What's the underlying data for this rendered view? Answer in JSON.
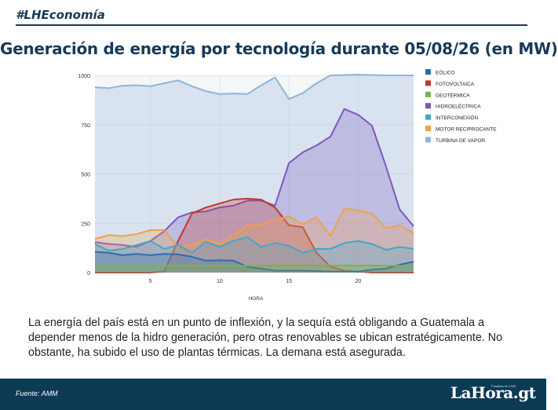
{
  "header": {
    "hashtag": "#LHEconomía"
  },
  "chart_data": {
    "type": "area",
    "title": "Generación de energía por tecnología durante 05/08/26 (en MW)",
    "xlabel": "HORA",
    "ylabel": "",
    "xlim": [
      1,
      24
    ],
    "ylim": [
      0,
      1000
    ],
    "xticks": [
      5,
      10,
      15,
      20
    ],
    "yticks": [
      0,
      250,
      500,
      750,
      1000
    ],
    "legend_position": "right",
    "x": [
      1,
      2,
      3,
      4,
      5,
      6,
      7,
      8,
      9,
      10,
      11,
      12,
      13,
      14,
      15,
      16,
      17,
      18,
      19,
      20,
      21,
      22,
      23,
      24
    ],
    "series": [
      {
        "name": "EÓLICO",
        "color": "#2b6cb0",
        "values": [
          105,
          100,
          88,
          95,
          88,
          95,
          92,
          80,
          60,
          62,
          60,
          30,
          20,
          10,
          10,
          10,
          8,
          5,
          5,
          5,
          15,
          20,
          40,
          55
        ]
      },
      {
        "name": "FOTOVOLTAICA",
        "color": "#c0392b",
        "values": [
          0,
          0,
          0,
          0,
          0,
          5,
          160,
          300,
          330,
          350,
          370,
          375,
          370,
          330,
          240,
          230,
          100,
          30,
          10,
          5,
          0,
          0,
          0,
          0
        ]
      },
      {
        "name": "GEOTÉRMICA",
        "color": "#7cb342",
        "values": [
          35,
          35,
          35,
          35,
          35,
          35,
          35,
          35,
          35,
          35,
          35,
          35,
          35,
          35,
          35,
          35,
          35,
          35,
          35,
          35,
          35,
          35,
          35,
          35
        ]
      },
      {
        "name": "HIDROELÉCTRICA",
        "color": "#7e57c2",
        "values": [
          155,
          145,
          140,
          130,
          160,
          210,
          280,
          305,
          310,
          330,
          340,
          365,
          365,
          340,
          555,
          610,
          645,
          690,
          830,
          800,
          745,
          540,
          320,
          235
        ]
      },
      {
        "name": "INTERCONEXIÓN",
        "color": "#3fa7c9",
        "values": [
          145,
          110,
          120,
          140,
          160,
          120,
          140,
          100,
          155,
          130,
          160,
          180,
          130,
          150,
          135,
          100,
          120,
          120,
          150,
          160,
          145,
          115,
          130,
          120
        ]
      },
      {
        "name": "MOTOR RECIPROCANTE",
        "color": "#f0a04b",
        "values": [
          170,
          190,
          185,
          195,
          215,
          215,
          130,
          140,
          170,
          145,
          190,
          240,
          245,
          265,
          285,
          245,
          280,
          185,
          325,
          315,
          300,
          225,
          240,
          200
        ]
      },
      {
        "name": "TURBINA DE VAPOR",
        "color": "#90b4d8",
        "values": [
          940,
          935,
          948,
          950,
          945,
          960,
          975,
          945,
          920,
          905,
          908,
          905,
          950,
          990,
          880,
          910,
          960,
          1000,
          1002,
          1004,
          1002,
          1000,
          1000,
          1000
        ]
      }
    ]
  },
  "caption": "La energía del país está en un punto de inflexión, y la sequía está obligando a Guatemala a depender menos de la hidro generación, pero otras renovables se ubican estratégicamente.  No obstante, ha subido el uso de plantas térmicas.  La demana está asegurada.",
  "footer": {
    "source": "Fuente: AMM",
    "logo": "LaHora.gt",
    "logo_tagline": "Fundado en 1920"
  }
}
